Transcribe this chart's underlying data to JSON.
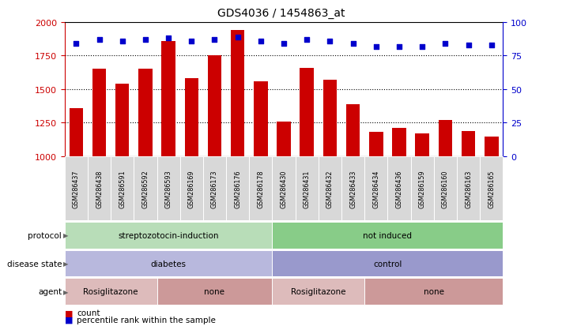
{
  "title": "GDS4036 / 1454863_at",
  "samples": [
    "GSM286437",
    "GSM286438",
    "GSM286591",
    "GSM286592",
    "GSM286593",
    "GSM286169",
    "GSM286173",
    "GSM286176",
    "GSM286178",
    "GSM286430",
    "GSM286431",
    "GSM286432",
    "GSM286433",
    "GSM286434",
    "GSM286436",
    "GSM286159",
    "GSM286160",
    "GSM286163",
    "GSM286165"
  ],
  "counts": [
    1360,
    1650,
    1540,
    1650,
    1860,
    1580,
    1750,
    1940,
    1560,
    1260,
    1660,
    1570,
    1390,
    1180,
    1210,
    1170,
    1270,
    1185,
    1145
  ],
  "percentiles": [
    84,
    87,
    86,
    87,
    88,
    86,
    87,
    89,
    86,
    84,
    87,
    86,
    84,
    82,
    82,
    82,
    84,
    83,
    83
  ],
  "ymin": 1000,
  "ymax": 2000,
  "bar_color": "#cc0000",
  "dot_color": "#0000cc",
  "protocol_groups": [
    {
      "label": "streptozotocin-induction",
      "start": 0,
      "end": 9,
      "color": "#b8ddb8"
    },
    {
      "label": "not induced",
      "start": 9,
      "end": 19,
      "color": "#88cc88"
    }
  ],
  "disease_groups": [
    {
      "label": "diabetes",
      "start": 0,
      "end": 9,
      "color": "#b8b8dd"
    },
    {
      "label": "control",
      "start": 9,
      "end": 19,
      "color": "#9999cc"
    }
  ],
  "agent_groups": [
    {
      "label": "Rosiglitazone",
      "start": 0,
      "end": 4,
      "color": "#ddbbbb"
    },
    {
      "label": "none",
      "start": 4,
      "end": 9,
      "color": "#cc9999"
    },
    {
      "label": "Rosiglitazone",
      "start": 9,
      "end": 13,
      "color": "#ddbbbb"
    },
    {
      "label": "none",
      "start": 13,
      "end": 19,
      "color": "#cc9999"
    }
  ],
  "left_yticks": [
    1000,
    1250,
    1500,
    1750,
    2000
  ],
  "right_yticks": [
    0,
    25,
    50,
    75,
    100
  ],
  "bg_color": "#ffffff",
  "axis_label_color_left": "#cc0000",
  "axis_label_color_right": "#0000cc",
  "legend_count_label": "count",
  "legend_percentile_label": "percentile rank within the sample",
  "row_label_protocol": "protocol",
  "row_label_disease": "disease state",
  "row_label_agent": "agent",
  "sample_bg_color": "#d8d8d8"
}
